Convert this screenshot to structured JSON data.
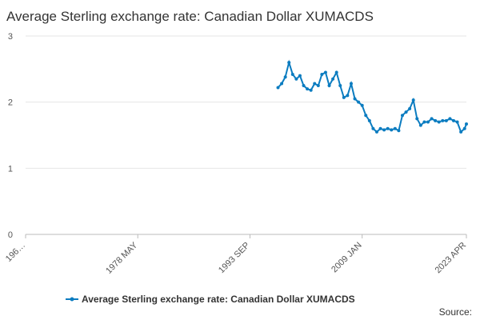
{
  "chart_data": {
    "type": "line",
    "title": "Average Sterling exchange rate: Canadian Dollar XUMACDS",
    "source": "Source:",
    "x": [
      "1997 JUL",
      "1998 JAN",
      "1998 JUL",
      "1999 JAN",
      "1999 JUL",
      "2000 JAN",
      "2000 JUL",
      "2001 JAN",
      "2001 JUL",
      "2002 JAN",
      "2002 JUL",
      "2003 JAN",
      "2003 JUL",
      "2004 JAN",
      "2004 JUL",
      "2005 JAN",
      "2005 JUL",
      "2006 JAN",
      "2006 JUL",
      "2007 JAN",
      "2007 JUL",
      "2008 JAN",
      "2008 JUL",
      "2009 JAN",
      "2009 JUL",
      "2010 JAN",
      "2010 JUL",
      "2011 JAN",
      "2011 JUL",
      "2012 JAN",
      "2012 JUL",
      "2013 JAN",
      "2013 JUL",
      "2014 JAN",
      "2014 JUL",
      "2015 JAN",
      "2015 JUL",
      "2016 JAN",
      "2016 JUL",
      "2017 JAN",
      "2017 JUL",
      "2018 JAN",
      "2018 JUL",
      "2019 JAN",
      "2019 JUL",
      "2020 JAN",
      "2020 JUL",
      "2021 JAN",
      "2021 JUL",
      "2022 JAN",
      "2022 JUL",
      "2023 JAN",
      "2023 APR"
    ],
    "series": [
      {
        "name": "Average Sterling exchange rate: Canadian Dollar XUMACDS",
        "color": "#0b7cc0",
        "values": [
          2.22,
          2.28,
          2.38,
          2.6,
          2.42,
          2.35,
          2.4,
          2.25,
          2.2,
          2.18,
          2.28,
          2.25,
          2.42,
          2.45,
          2.25,
          2.35,
          2.45,
          2.25,
          2.07,
          2.1,
          2.28,
          2.05,
          2.0,
          1.95,
          1.8,
          1.72,
          1.6,
          1.55,
          1.6,
          1.58,
          1.6,
          1.58,
          1.6,
          1.57,
          1.8,
          1.85,
          1.9,
          2.03,
          1.75,
          1.65,
          1.7,
          1.7,
          1.75,
          1.72,
          1.7,
          1.72,
          1.72,
          1.75,
          1.72,
          1.7,
          1.55,
          1.6,
          1.67
        ]
      }
    ],
    "xlim": [
      "1963 JAN",
      "2023 APR"
    ],
    "xticks": [
      {
        "value": "1963 JAN",
        "label": "196…"
      },
      "1978 MAY",
      "1993 SEP",
      "2009 JAN",
      "2023 APR"
    ],
    "ylim": [
      0,
      3
    ],
    "yticks": [
      0,
      1,
      2,
      3
    ],
    "grid": true
  }
}
